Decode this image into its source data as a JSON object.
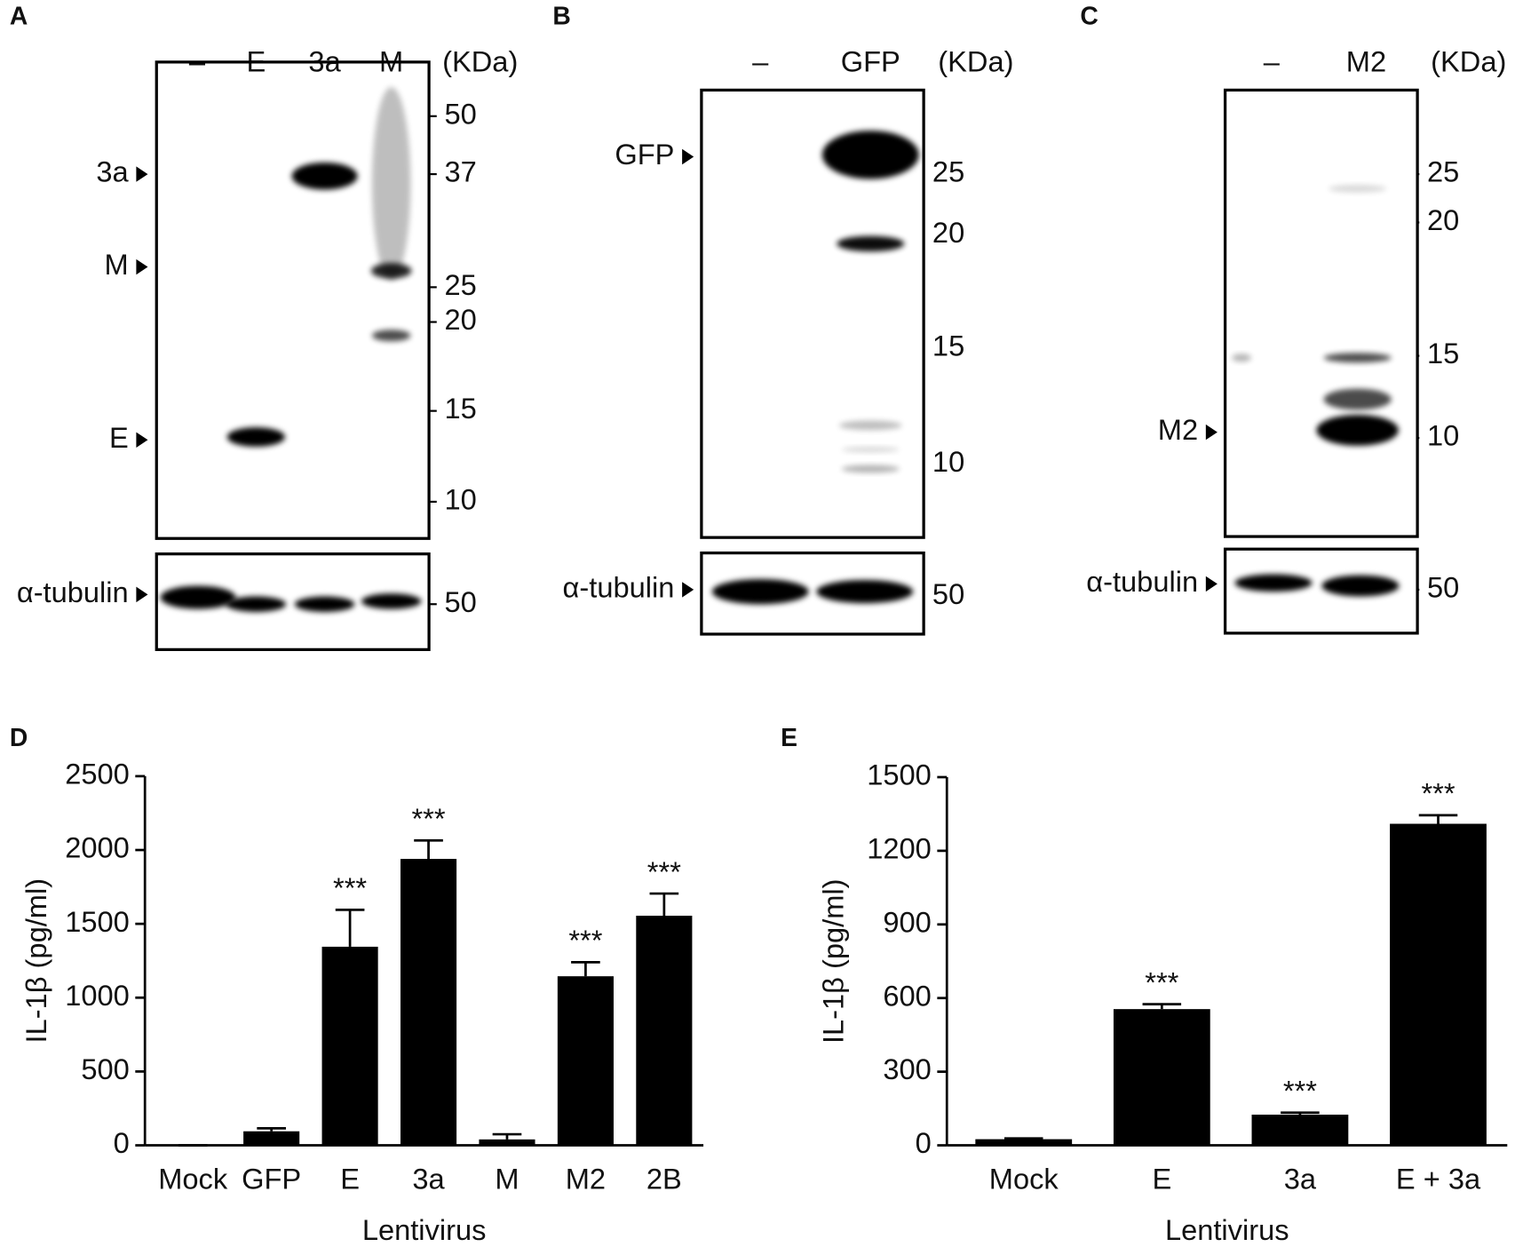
{
  "panels": [
    {
      "letter": "A",
      "lanes": [
        "–",
        "E",
        "3a",
        "M"
      ],
      "unit": "(KDa)",
      "markers": [
        50,
        37,
        25,
        20,
        15,
        10
      ],
      "arrows": [
        "3a",
        "M",
        "E"
      ],
      "loading": "α-tubulin",
      "loading_marker": 50
    },
    {
      "letter": "B",
      "lanes": [
        "–",
        "GFP"
      ],
      "unit": "(KDa)",
      "markers": [
        25,
        20,
        15,
        10
      ],
      "arrows": [
        "GFP"
      ],
      "loading": "α-tubulin",
      "loading_marker": 50
    },
    {
      "letter": "C",
      "lanes": [
        "–",
        "M2"
      ],
      "unit": "(KDa)",
      "markers": [
        25,
        20,
        15,
        10
      ],
      "arrows": [
        "M2"
      ],
      "loading": "α-tubulin",
      "loading_marker": 50
    }
  ],
  "chart_data": [
    {
      "type": "bar",
      "panel_label": "D",
      "x_label": "Lentivirus",
      "y_label": "IL-1β (pg/ml)",
      "categories": [
        "Mock",
        "GFP",
        "E",
        "3a",
        "M",
        "M2",
        "2B"
      ],
      "values": [
        0,
        95,
        1345,
        1940,
        40,
        1145,
        1555
      ],
      "errors": [
        0,
        20,
        250,
        125,
        35,
        95,
        150
      ],
      "annotations": [
        null,
        null,
        "***",
        "***",
        null,
        "***",
        "***"
      ],
      "color": "#000000",
      "ylim": [
        0,
        2500
      ],
      "yticks": [
        0,
        500,
        1000,
        1500,
        2000,
        2500
      ]
    },
    {
      "type": "bar",
      "panel_label": "E",
      "x_label": "Lentivirus",
      "y_label": "IL-1β (pg/ml)",
      "categories": [
        "Mock",
        "E",
        "3a",
        "E + 3a"
      ],
      "values": [
        25,
        555,
        125,
        1310
      ],
      "errors": [
        3,
        20,
        8,
        35
      ],
      "annotations": [
        null,
        "***",
        "***",
        "***"
      ],
      "color": "#000000",
      "ylim": [
        0,
        1500
      ],
      "yticks": [
        0,
        300,
        600,
        900,
        1200,
        1500
      ]
    }
  ]
}
